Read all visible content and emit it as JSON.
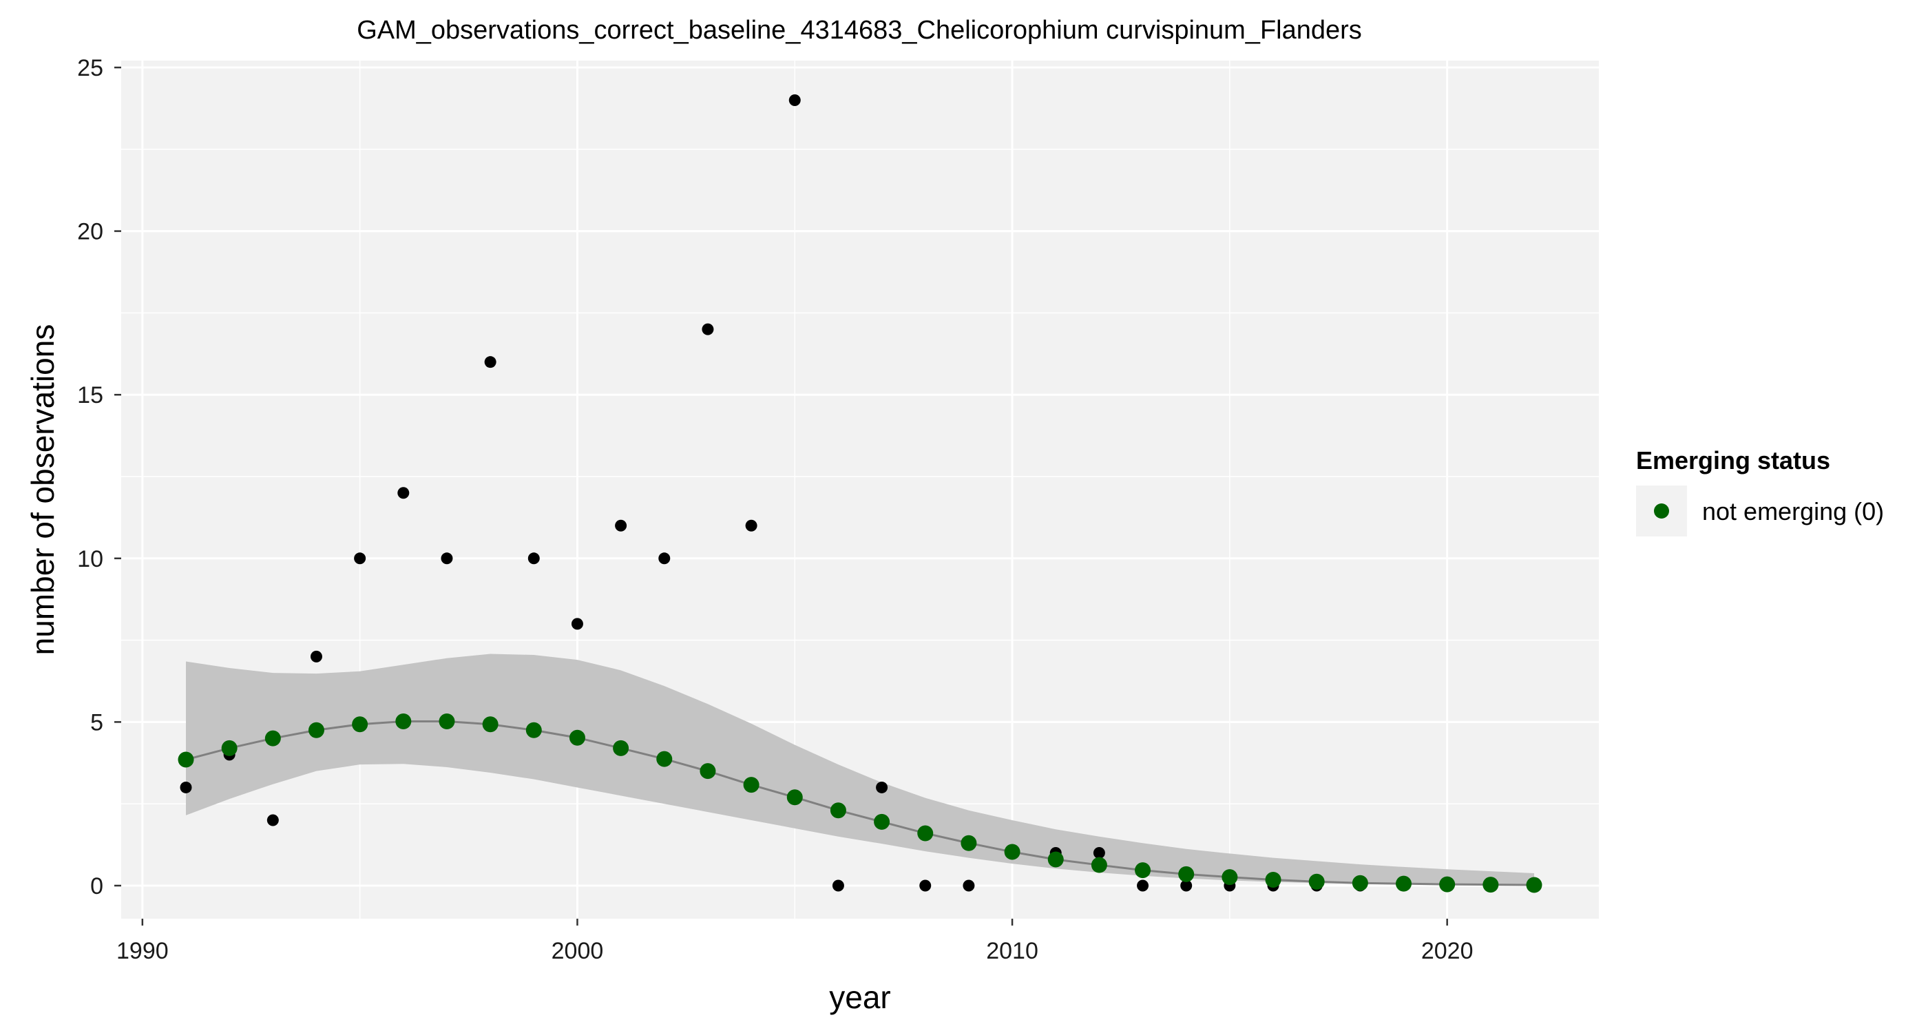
{
  "chart_data": {
    "type": "scatter",
    "title": "GAM_observations_correct_baseline_4314683_Chelicorophium curvispinum_Flanders",
    "xlabel": "year",
    "ylabel": "number of observations",
    "xlim": [
      1990,
      2022
    ],
    "ylim": [
      0,
      25
    ],
    "x_ticks": [
      "1990",
      "2000",
      "2010",
      "2020"
    ],
    "y_ticks": [
      "0",
      "5",
      "10",
      "15",
      "20",
      "25"
    ],
    "grid": true,
    "legend": {
      "title": "Emerging status",
      "position": "right",
      "items": [
        {
          "label": "not emerging (0)",
          "color": "#006400"
        }
      ]
    },
    "colors": {
      "panel": "#f2f2f2",
      "grid": "#ffffff",
      "observed": "#000000",
      "fit_line": "#808080",
      "ribbon": "#c4c4c4",
      "fitted": "#006400"
    },
    "observed": {
      "x": [
        1991,
        1992,
        1993,
        1994,
        1995,
        1996,
        1997,
        1998,
        1999,
        2000,
        2001,
        2002,
        2003,
        2004,
        2005,
        2006,
        2007,
        2008,
        2009,
        2011,
        2012,
        2013,
        2014,
        2015,
        2016,
        2017,
        2018
      ],
      "y": [
        3,
        4,
        2,
        7,
        10,
        12,
        10,
        16,
        10,
        8,
        11,
        10,
        17,
        11,
        24,
        0,
        3,
        0,
        0,
        1,
        1,
        0,
        0,
        0,
        0,
        0,
        0
      ]
    },
    "fitted": {
      "x": [
        1991,
        1992,
        1993,
        1994,
        1995,
        1996,
        1997,
        1998,
        1999,
        2000,
        2001,
        2002,
        2003,
        2004,
        2005,
        2006,
        2007,
        2008,
        2009,
        2010,
        2011,
        2012,
        2013,
        2014,
        2015,
        2016,
        2017,
        2018,
        2019,
        2020,
        2021,
        2022
      ],
      "y": [
        3.85,
        4.2,
        4.5,
        4.75,
        4.93,
        5.02,
        5.02,
        4.93,
        4.75,
        4.52,
        4.2,
        3.87,
        3.5,
        3.08,
        2.7,
        2.3,
        1.95,
        1.6,
        1.3,
        1.03,
        0.8,
        0.63,
        0.47,
        0.35,
        0.26,
        0.18,
        0.12,
        0.08,
        0.06,
        0.04,
        0.03,
        0.02
      ],
      "lower": [
        2.15,
        2.65,
        3.1,
        3.5,
        3.7,
        3.72,
        3.62,
        3.45,
        3.25,
        3.0,
        2.75,
        2.5,
        2.25,
        2.0,
        1.75,
        1.5,
        1.28,
        1.05,
        0.85,
        0.67,
        0.52,
        0.4,
        0.3,
        0.22,
        0.16,
        0.11,
        0.08,
        0.05,
        0.03,
        0.02,
        0.01,
        0.0
      ],
      "upper": [
        6.85,
        6.65,
        6.5,
        6.48,
        6.55,
        6.75,
        6.95,
        7.08,
        7.05,
        6.9,
        6.58,
        6.1,
        5.55,
        4.95,
        4.3,
        3.7,
        3.15,
        2.68,
        2.3,
        2.0,
        1.72,
        1.5,
        1.3,
        1.12,
        0.98,
        0.85,
        0.75,
        0.65,
        0.57,
        0.5,
        0.44,
        0.38
      ]
    }
  }
}
